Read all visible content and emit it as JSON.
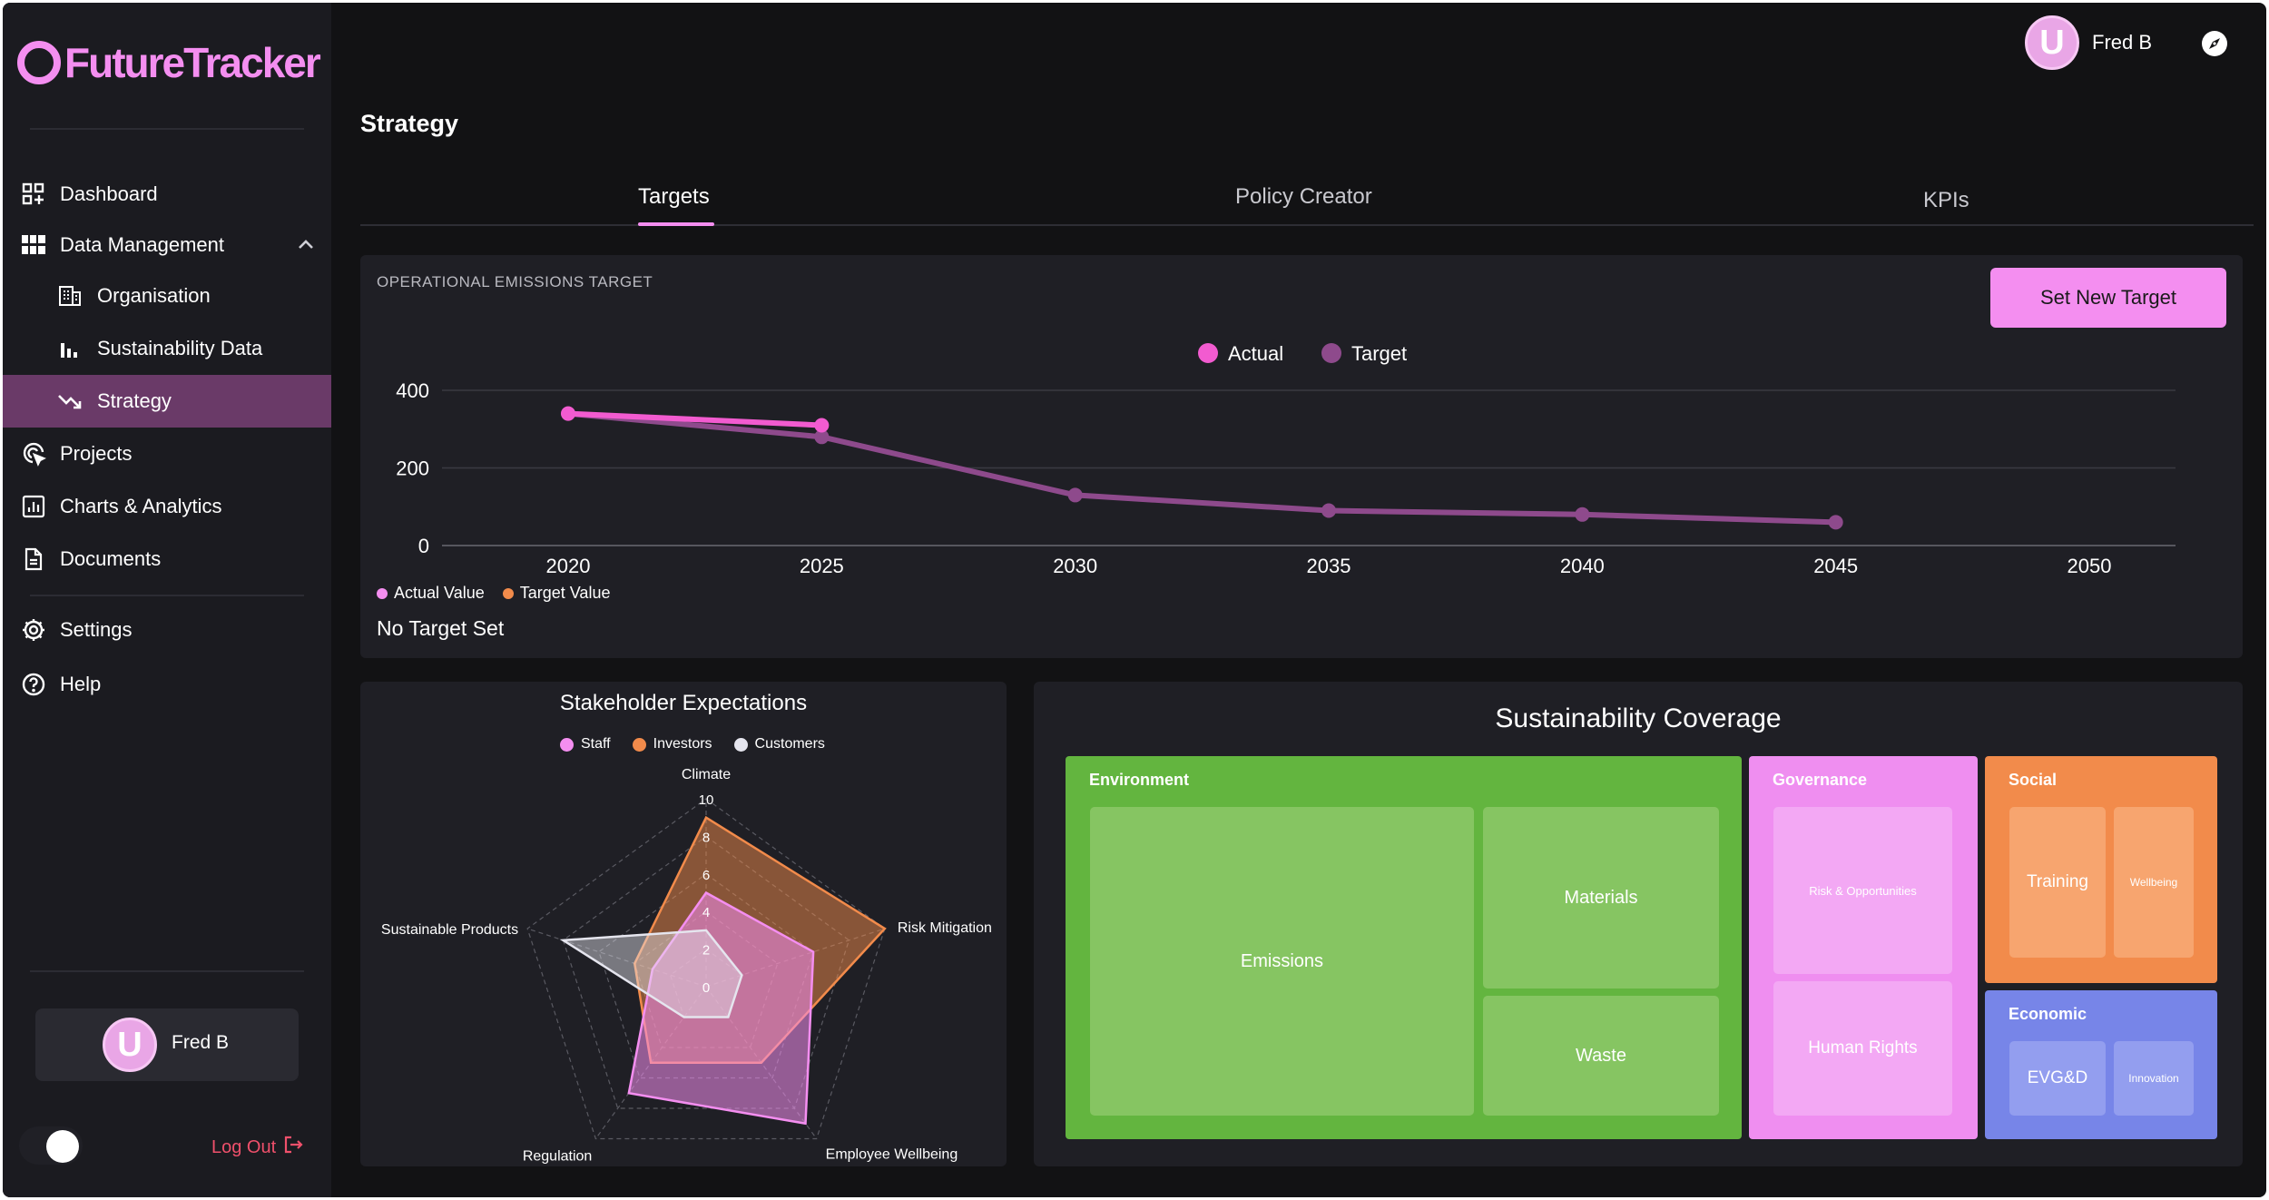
{
  "app": {
    "logo_text": "FutureTracker"
  },
  "sidebar": {
    "items": [
      {
        "label": "Dashboard",
        "icon": "dashboard-icon"
      },
      {
        "label": "Data Management",
        "icon": "grid-icon"
      },
      {
        "label": "Organisation",
        "icon": "building-icon"
      },
      {
        "label": "Sustainability Data",
        "icon": "bar-chart-icon"
      },
      {
        "label": "Strategy",
        "icon": "trend-down-icon",
        "active": true
      },
      {
        "label": "Projects",
        "icon": "target-cursor-icon"
      },
      {
        "label": "Charts & Analytics",
        "icon": "analytics-icon"
      },
      {
        "label": "Documents",
        "icon": "document-icon"
      },
      {
        "label": "Settings",
        "icon": "gear-icon"
      },
      {
        "label": "Help",
        "icon": "help-icon"
      }
    ],
    "user_name": "Fred B",
    "avatar_letter": "U",
    "logout_label": "Log Out"
  },
  "header": {
    "user_name": "Fred B",
    "avatar_letter": "U"
  },
  "page": {
    "title": "Strategy",
    "tabs": [
      {
        "label": "Targets",
        "active": true
      },
      {
        "label": "Policy Creator"
      },
      {
        "label": "KPIs"
      }
    ]
  },
  "emissions_card": {
    "label": "OPERATIONAL EMISSIONS TARGET",
    "button_label": "Set New Target",
    "bottom_legend": [
      {
        "label": "Actual Value",
        "color": "#f48ef0"
      },
      {
        "label": "Target Value",
        "color": "#f28b4b"
      }
    ],
    "status_text": "No Target Set"
  },
  "coverage": {
    "title": "Sustainability Coverage",
    "groups": [
      {
        "name": "Environment",
        "color": "#63b53f",
        "cell_color": "#86c562",
        "cells": [
          "Emissions",
          "Materials",
          "Waste"
        ]
      },
      {
        "name": "Governance",
        "color": "#ef8ef0",
        "cell_color": "#f3a8f4",
        "cells": [
          "Risk & Opportunities",
          "Human Rights"
        ]
      },
      {
        "name": "Social",
        "color": "#f28b4b",
        "cell_color": "#f7a56f",
        "cells": [
          "Training",
          "Wellbeing"
        ]
      },
      {
        "name": "Economic",
        "color": "#7785e8",
        "cell_color": "#939eef",
        "cells": [
          "EVG&D",
          "Innovation"
        ]
      }
    ]
  },
  "chart_data": [
    {
      "type": "line",
      "x": [
        2020,
        2025,
        2030,
        2035,
        2040,
        2045,
        2050
      ],
      "y_ticks": [
        0,
        200,
        400
      ],
      "ylim": [
        0,
        400
      ],
      "legend": "top-center",
      "grid": true,
      "series": [
        {
          "name": "Actual",
          "color": "#f25bd0",
          "points": [
            [
              2020,
              340
            ],
            [
              2025,
              310
            ]
          ]
        },
        {
          "name": "Target",
          "color": "#8e4a8c",
          "points": [
            [
              2020,
              340
            ],
            [
              2025,
              280
            ],
            [
              2030,
              130
            ],
            [
              2035,
              90
            ],
            [
              2040,
              80
            ],
            [
              2045,
              60
            ]
          ]
        }
      ]
    },
    {
      "type": "radar",
      "title": "Stakeholder Expectations",
      "axes": [
        "Climate",
        "Risk Mitigation",
        "Employee Wellbeing",
        "Regulation",
        "Sustainable Products"
      ],
      "ticks": [
        0,
        2,
        4,
        6,
        8,
        10
      ],
      "rmax": 10,
      "series": [
        {
          "name": "Staff",
          "color": "#f48ef0",
          "values": [
            5,
            6,
            9,
            7,
            3
          ]
        },
        {
          "name": "Investors",
          "color": "#f28b4b",
          "values": [
            9,
            10,
            5,
            5,
            4
          ]
        },
        {
          "name": "Customers",
          "color": "#e5e5ee",
          "values": [
            3,
            2,
            2,
            2,
            8
          ]
        }
      ]
    }
  ]
}
